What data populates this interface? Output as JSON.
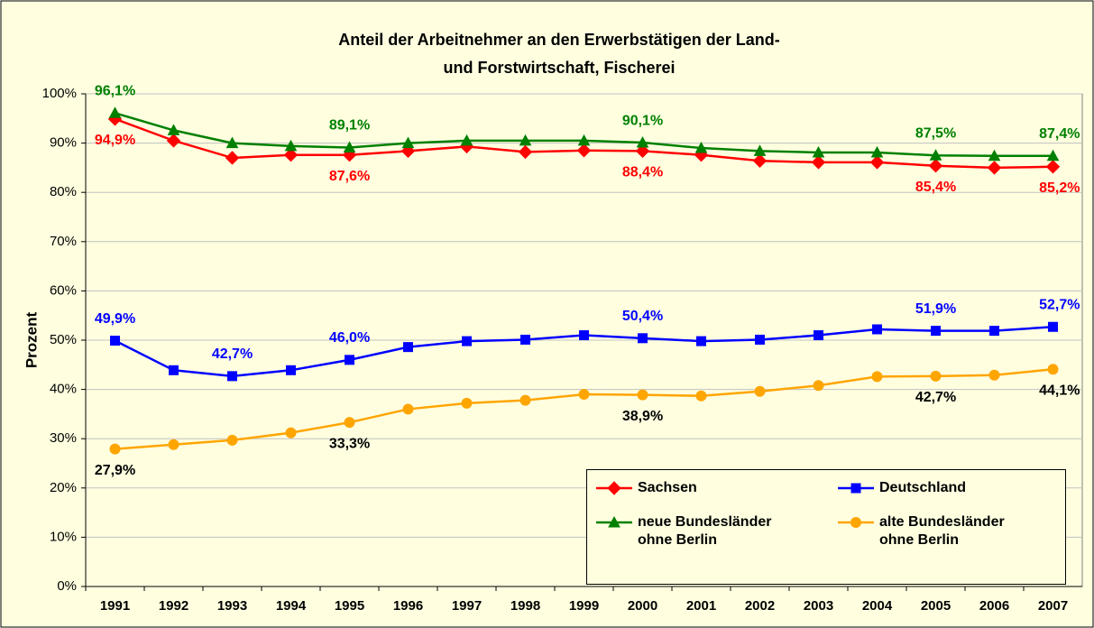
{
  "chart_data": {
    "type": "line",
    "title_lines": [
      "Anteil der Arbeitnehmer an den Erwerbstätigen der Land-",
      "und Forstwirtschaft, Fischerei"
    ],
    "y_label": "Prozent",
    "categories": [
      "1991",
      "1992",
      "1993",
      "1994",
      "1995",
      "1996",
      "1997",
      "1998",
      "1999",
      "2000",
      "2001",
      "2002",
      "2003",
      "2004",
      "2005",
      "2006",
      "2007"
    ],
    "series": [
      {
        "name": "Sachsen",
        "color": "#ff0000",
        "marker": "diamond",
        "label_color": "#ff0000",
        "label_pos": "below",
        "values": [
          94.9,
          90.5,
          87.0,
          87.6,
          87.6,
          88.4,
          89.3,
          88.2,
          88.5,
          88.4,
          87.6,
          86.4,
          86.1,
          86.1,
          85.4,
          85.0,
          85.2
        ],
        "value_labels": [
          "94,9%",
          null,
          null,
          null,
          "87,6%",
          null,
          null,
          null,
          null,
          "88,4%",
          null,
          null,
          null,
          null,
          "85,4%",
          null,
          "85,2%"
        ]
      },
      {
        "name": "Deutschland",
        "color": "#0000ff",
        "marker": "square",
        "label_color": "#0000ff",
        "label_pos": "above",
        "values": [
          49.9,
          43.9,
          42.7,
          43.9,
          46.0,
          48.6,
          49.8,
          50.1,
          51.0,
          50.4,
          49.8,
          50.1,
          51.0,
          52.2,
          51.9,
          51.9,
          52.7
        ],
        "value_labels": [
          "49,9%",
          null,
          "42,7%",
          null,
          "46,0%",
          null,
          null,
          null,
          null,
          "50,4%",
          null,
          null,
          null,
          null,
          "51,9%",
          null,
          "52,7%"
        ]
      },
      {
        "name": "neue Bundesländer ohne Berlin",
        "color": "#008000",
        "marker": "triangle",
        "label_color": "#008000",
        "label_pos": "above",
        "values": [
          96.1,
          92.6,
          90.0,
          89.4,
          89.1,
          90.0,
          90.5,
          90.5,
          90.5,
          90.1,
          89.0,
          88.4,
          88.1,
          88.1,
          87.5,
          87.4,
          87.4
        ],
        "value_labels": [
          "96,1%",
          null,
          null,
          null,
          "89,1%",
          null,
          null,
          null,
          null,
          "90,1%",
          null,
          null,
          null,
          null,
          "87,5%",
          null,
          "87,4%"
        ]
      },
      {
        "name": "alte Bundesländer ohne Berlin",
        "color": "#ffa500",
        "marker": "circle",
        "label_color": "#000000",
        "label_pos": "below",
        "values": [
          27.9,
          28.8,
          29.7,
          31.2,
          33.3,
          36.0,
          37.2,
          37.8,
          39.0,
          38.9,
          38.7,
          39.6,
          40.8,
          42.6,
          42.7,
          42.9,
          44.1
        ],
        "value_labels": [
          "27,9%",
          null,
          null,
          null,
          "33,3%",
          null,
          null,
          null,
          null,
          "38,9%",
          null,
          null,
          null,
          null,
          "42,7%",
          null,
          "44,1%"
        ]
      }
    ],
    "ylim": [
      0,
      100
    ],
    "yticks": [
      {
        "value": 0,
        "label": "0%"
      },
      {
        "value": 10,
        "label": "10%"
      },
      {
        "value": 20,
        "label": "20%"
      },
      {
        "value": 30,
        "label": "30%"
      },
      {
        "value": 40,
        "label": "40%"
      },
      {
        "value": 50,
        "label": "50%"
      },
      {
        "value": 60,
        "label": "60%"
      },
      {
        "value": 70,
        "label": "70%"
      },
      {
        "value": 80,
        "label": "80%"
      },
      {
        "value": 90,
        "label": "90%"
      },
      {
        "value": 100,
        "label": "100%"
      }
    ],
    "grid": true,
    "legend": "lower right"
  }
}
